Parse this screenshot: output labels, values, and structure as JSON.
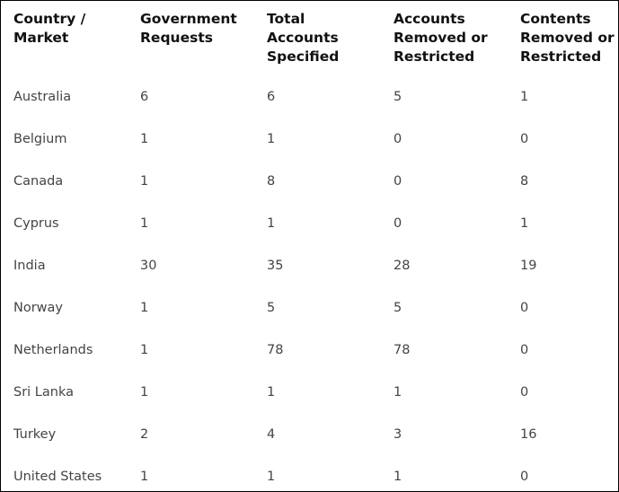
{
  "table": {
    "header": [
      [
        "Country /",
        "Market"
      ],
      [
        "Government",
        "Requests"
      ],
      [
        "Total",
        "Accounts",
        "Specified"
      ],
      [
        "Accounts",
        "Removed or",
        "Restricted"
      ],
      [
        "Contents",
        "Removed or",
        "Restricted"
      ]
    ],
    "rows": [
      [
        "Australia",
        6,
        6,
        5,
        1
      ],
      [
        "Belgium",
        1,
        1,
        0,
        0
      ],
      [
        "Canada",
        1,
        8,
        0,
        8
      ],
      [
        "Cyprus",
        1,
        1,
        0,
        1
      ],
      [
        "India",
        30,
        35,
        28,
        19
      ],
      [
        "Norway",
        1,
        5,
        5,
        0
      ],
      [
        "Netherlands",
        1,
        78,
        78,
        0
      ],
      [
        "Sri Lanka",
        1,
        1,
        1,
        0
      ],
      [
        "Turkey",
        2,
        4,
        3,
        16
      ],
      [
        "United States",
        1,
        1,
        1,
        0
      ]
    ]
  }
}
